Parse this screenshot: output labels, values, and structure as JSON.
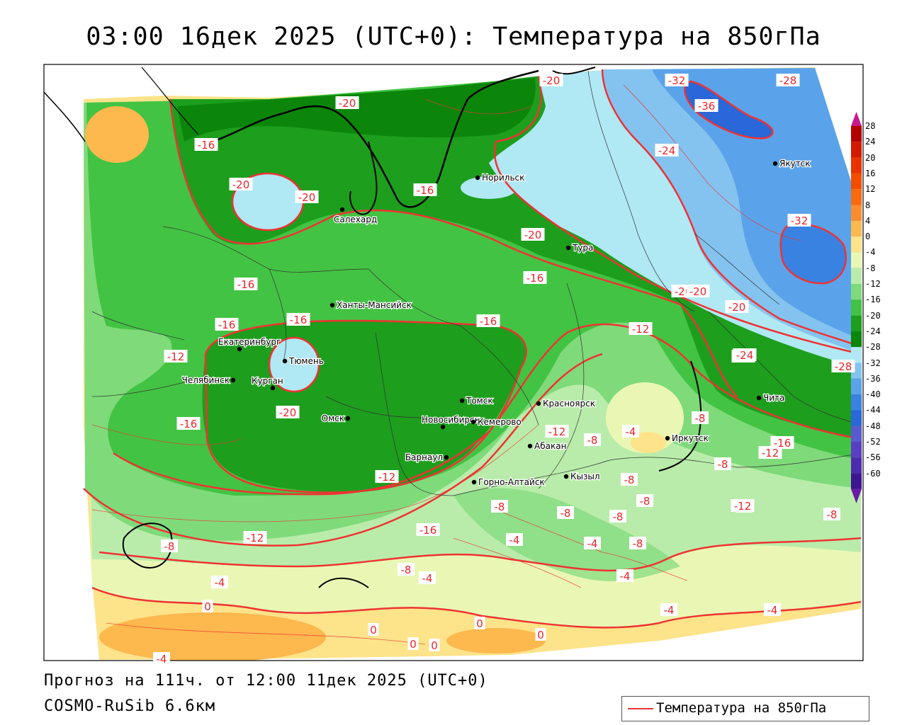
{
  "title": "03:00 16дек 2025 (UTC+0): Температура на 850гПа",
  "forecast_line": "Прогноз на 111ч. от 12:00 11дек 2025 (UTC+0)",
  "model_line": "COSMO-RuSib 6.6км",
  "legend": {
    "label": "Температура на 850гПа",
    "line_color": "#ee3333"
  },
  "colors": {
    "contour": "#ee3333",
    "coast": "#000000",
    "borders": "#333333"
  },
  "scale": {
    "values": [
      "28",
      "24",
      "20",
      "16",
      "12",
      "8",
      "4",
      "0",
      "-4",
      "-8",
      "-12",
      "-16",
      "-20",
      "-24",
      "-28",
      "-32",
      "-36",
      "-40",
      "-44",
      "-48",
      "-52",
      "-56",
      "-60"
    ],
    "colors": [
      "#b30000",
      "#d11a00",
      "#e83300",
      "#f24d00",
      "#f76a10",
      "#fb8c2e",
      "#fdb84e",
      "#fde38a",
      "#eaf7b4",
      "#b9ecaa",
      "#7fda7a",
      "#43c343",
      "#1d9e1d",
      "#0b860b",
      "#b0e8f4",
      "#84c3ef",
      "#5aa3ea",
      "#3a82e2",
      "#2a67d8",
      "#5a5ad0",
      "#5a3ec3",
      "#4d2ab0",
      "#3d1590"
    ]
  },
  "cities": [
    {
      "name": "Норильск"
    },
    {
      "name": "Салехард"
    },
    {
      "name": "Тура"
    },
    {
      "name": "Якутск"
    },
    {
      "name": "Ханты-Мансийск"
    },
    {
      "name": "Екатеринбург"
    },
    {
      "name": "Тюмень"
    },
    {
      "name": "Челябинск"
    },
    {
      "name": "Курган"
    },
    {
      "name": "Омск"
    },
    {
      "name": "Новосибирск"
    },
    {
      "name": "Томск"
    },
    {
      "name": "Кемерово"
    },
    {
      "name": "Красноярск"
    },
    {
      "name": "Барнаул"
    },
    {
      "name": "Абакан"
    },
    {
      "name": "Иркутск"
    },
    {
      "name": "Кызыл"
    },
    {
      "name": "Горно-Алтайск"
    },
    {
      "name": "Чита"
    }
  ],
  "isotherm_labels": [
    "-20",
    "-20",
    "-16",
    "-20",
    "-20",
    "-16",
    "-32",
    "-28",
    "-36",
    "-24",
    "-32",
    "-20",
    "-20",
    "-16",
    "-16",
    "-16",
    "-16",
    "-12",
    "-20",
    "-16",
    "-28",
    "-24",
    "-12",
    "-20",
    "-28",
    "-16",
    "-20",
    "-8",
    "-12",
    "-4",
    "-8",
    "-12",
    "-8",
    "-16",
    "-12",
    "-16",
    "-12",
    "-8",
    "-8",
    "-8",
    "-8",
    "-8",
    "-8",
    "-8",
    "-8",
    "-8",
    "-4",
    "-4",
    "-8",
    "-4",
    "-4",
    "-4",
    "0",
    "0",
    "0",
    "0",
    "0",
    "0",
    "-4",
    "-4",
    "-4",
    "-12"
  ]
}
